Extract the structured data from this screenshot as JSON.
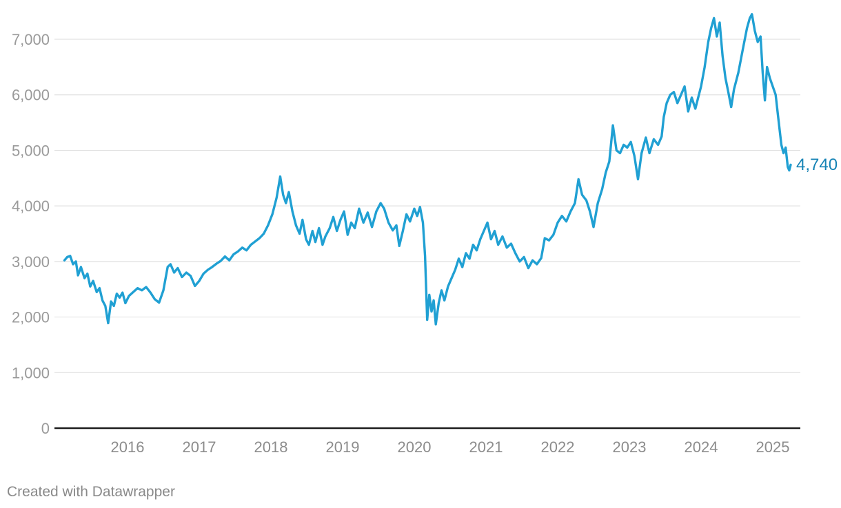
{
  "footer": {
    "credit": "Created with Datawrapper"
  },
  "colors": {
    "background": "#ffffff",
    "line": "#20a0d3",
    "end_label": "#1583b5",
    "grid": "#e2e2e2",
    "axis_baseline": "#1c1c1c",
    "y_tick_label": "#9a9a9a",
    "x_tick_label": "#8c8c8c",
    "footer_text": "#8a8a8a"
  },
  "chart_data": {
    "type": "line",
    "grid": "horizontal-gridlines-on",
    "legend_position": "none",
    "xlabel": "",
    "ylabel": "",
    "x_axis": {
      "tick_years": [
        2016,
        2017,
        2018,
        2019,
        2020,
        2021,
        2022,
        2023,
        2024,
        2025
      ],
      "tick_labels": [
        "2016",
        "2017",
        "2018",
        "2019",
        "2020",
        "2021",
        "2022",
        "2023",
        "2024",
        "2025"
      ],
      "xlim": [
        2015.1,
        2025.45
      ]
    },
    "y_axis": {
      "min": 0,
      "max": 7000,
      "tick_values": [
        0,
        1000,
        2000,
        3000,
        4000,
        5000,
        6000,
        7000
      ],
      "tick_labels": [
        "0",
        "1,000",
        "2,000",
        "3,000",
        "4,000",
        "5,000",
        "6,000",
        "7,000"
      ]
    },
    "end_label": {
      "text": "4,740",
      "value": 4740
    },
    "series": [
      {
        "name": "index-value",
        "x": [
          2015.12,
          2015.16,
          2015.2,
          2015.24,
          2015.28,
          2015.31,
          2015.35,
          2015.4,
          2015.44,
          2015.48,
          2015.52,
          2015.57,
          2015.61,
          2015.65,
          2015.69,
          2015.73,
          2015.77,
          2015.81,
          2015.85,
          2015.89,
          2015.93,
          2015.97,
          2016.02,
          2016.08,
          2016.14,
          2016.2,
          2016.26,
          2016.32,
          2016.38,
          2016.44,
          2016.5,
          2016.56,
          2016.6,
          2016.65,
          2016.7,
          2016.76,
          2016.82,
          2016.88,
          2016.94,
          2017.0,
          2017.06,
          2017.12,
          2017.18,
          2017.24,
          2017.3,
          2017.36,
          2017.42,
          2017.48,
          2017.54,
          2017.6,
          2017.66,
          2017.72,
          2017.78,
          2017.84,
          2017.9,
          2017.96,
          2018.02,
          2018.08,
          2018.13,
          2018.17,
          2018.21,
          2018.25,
          2018.3,
          2018.35,
          2018.4,
          2018.44,
          2018.49,
          2018.53,
          2018.58,
          2018.62,
          2018.67,
          2018.72,
          2018.76,
          2018.82,
          2018.87,
          2018.92,
          2018.97,
          2019.02,
          2019.07,
          2019.12,
          2019.17,
          2019.23,
          2019.29,
          2019.35,
          2019.41,
          2019.47,
          2019.53,
          2019.58,
          2019.64,
          2019.7,
          2019.75,
          2019.79,
          2019.84,
          2019.89,
          2019.94,
          2020.0,
          2020.04,
          2020.08,
          2020.12,
          2020.15,
          2020.18,
          2020.21,
          2020.24,
          2020.27,
          2020.3,
          2020.34,
          2020.38,
          2020.42,
          2020.47,
          2020.52,
          2020.57,
          2020.62,
          2020.67,
          2020.72,
          2020.77,
          2020.82,
          2020.87,
          2020.92,
          2020.97,
          2021.02,
          2021.07,
          2021.12,
          2021.17,
          2021.23,
          2021.29,
          2021.35,
          2021.41,
          2021.47,
          2021.53,
          2021.59,
          2021.65,
          2021.71,
          2021.77,
          2021.82,
          2021.88,
          2021.94,
          2022.0,
          2022.06,
          2022.12,
          2022.18,
          2022.24,
          2022.29,
          2022.34,
          2022.4,
          2022.45,
          2022.5,
          2022.56,
          2022.62,
          2022.67,
          2022.72,
          2022.77,
          2022.82,
          2022.87,
          2022.92,
          2022.97,
          2023.02,
          2023.07,
          2023.12,
          2023.17,
          2023.23,
          2023.28,
          2023.34,
          2023.4,
          2023.45,
          2023.48,
          2023.52,
          2023.57,
          2023.62,
          2023.67,
          2023.72,
          2023.77,
          2023.82,
          2023.87,
          2023.92,
          2023.96,
          2024.0,
          2024.05,
          2024.1,
          2024.14,
          2024.18,
          2024.22,
          2024.26,
          2024.3,
          2024.34,
          2024.38,
          2024.42,
          2024.46,
          2024.52,
          2024.58,
          2024.64,
          2024.68,
          2024.71,
          2024.75,
          2024.79,
          2024.83,
          2024.86,
          2024.89,
          2024.92,
          2024.96,
          2025.0,
          2025.04,
          2025.08,
          2025.12,
          2025.15,
          2025.18,
          2025.21,
          2025.23,
          2025.25
        ],
        "values": [
          3020,
          3080,
          3100,
          2950,
          3000,
          2750,
          2900,
          2700,
          2780,
          2550,
          2650,
          2450,
          2520,
          2300,
          2200,
          1890,
          2280,
          2200,
          2420,
          2350,
          2440,
          2250,
          2380,
          2450,
          2520,
          2480,
          2540,
          2440,
          2320,
          2260,
          2480,
          2900,
          2950,
          2800,
          2880,
          2720,
          2800,
          2740,
          2560,
          2650,
          2780,
          2850,
          2900,
          2960,
          3010,
          3090,
          3020,
          3130,
          3180,
          3250,
          3200,
          3300,
          3360,
          3420,
          3500,
          3650,
          3850,
          4150,
          4530,
          4200,
          4050,
          4250,
          3900,
          3650,
          3500,
          3750,
          3400,
          3300,
          3550,
          3350,
          3600,
          3300,
          3450,
          3600,
          3800,
          3550,
          3750,
          3900,
          3480,
          3700,
          3600,
          3950,
          3700,
          3880,
          3620,
          3900,
          4050,
          3950,
          3700,
          3560,
          3650,
          3280,
          3550,
          3850,
          3720,
          3950,
          3820,
          3980,
          3700,
          3100,
          1950,
          2400,
          2100,
          2300,
          1870,
          2250,
          2480,
          2300,
          2550,
          2700,
          2850,
          3050,
          2900,
          3150,
          3050,
          3300,
          3200,
          3400,
          3550,
          3700,
          3400,
          3550,
          3300,
          3450,
          3250,
          3320,
          3150,
          3000,
          3080,
          2880,
          3020,
          2950,
          3060,
          3420,
          3380,
          3480,
          3700,
          3820,
          3720,
          3900,
          4050,
          4480,
          4200,
          4100,
          3900,
          3620,
          4050,
          4300,
          4600,
          4800,
          5450,
          5000,
          4950,
          5100,
          5050,
          5150,
          4900,
          4480,
          4950,
          5230,
          4950,
          5200,
          5100,
          5250,
          5600,
          5850,
          6000,
          6050,
          5850,
          6000,
          6150,
          5700,
          5950,
          5750,
          5950,
          6150,
          6500,
          6950,
          7200,
          7380,
          7050,
          7300,
          6700,
          6300,
          6050,
          5780,
          6100,
          6400,
          6800,
          7200,
          7380,
          7450,
          7150,
          6950,
          7050,
          6400,
          5900,
          6500,
          6300,
          6150,
          6000,
          5550,
          5100,
          4950,
          5050,
          4700,
          4640,
          4740
        ]
      }
    ]
  }
}
